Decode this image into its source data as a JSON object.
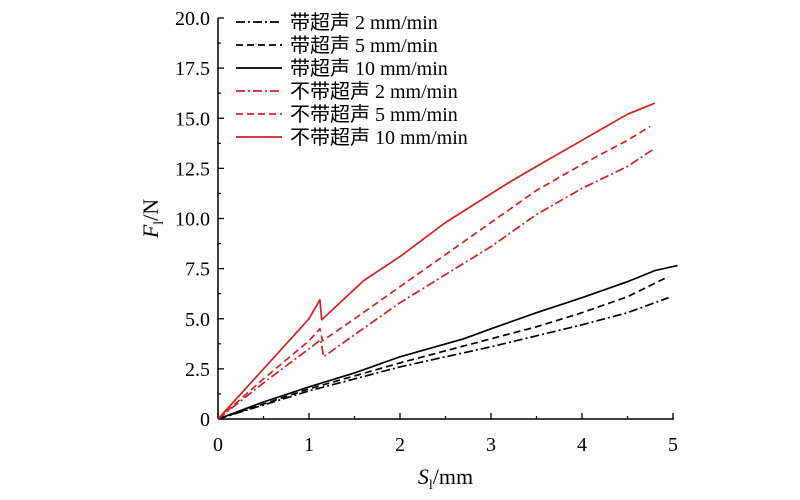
{
  "chart_data": {
    "type": "line",
    "xlabel": {
      "main": "S",
      "sub": "l",
      "unit": "/mm"
    },
    "ylabel": {
      "main": "F",
      "sub": "l",
      "unit": "/N"
    },
    "xlim": [
      0,
      5
    ],
    "ylim": [
      0,
      20
    ],
    "x_ticks": [
      "0",
      "1",
      "2",
      "3",
      "4",
      "5"
    ],
    "y_ticks": [
      "0",
      "2.5",
      "5.0",
      "7.5",
      "10.0",
      "12.5",
      "15.0",
      "17.5",
      "20.0"
    ],
    "grid": false,
    "legend_position": "top-left",
    "series": [
      {
        "name": "带超声 2 mm/min",
        "color": "#000000",
        "dash": "dashdot",
        "points": [
          [
            0,
            0
          ],
          [
            0.5,
            0.7
          ],
          [
            1,
            1.4
          ],
          [
            1.5,
            2.0
          ],
          [
            2,
            2.6
          ],
          [
            2.5,
            3.1
          ],
          [
            3,
            3.6
          ],
          [
            3.5,
            4.15
          ],
          [
            4,
            4.7
          ],
          [
            4.5,
            5.3
          ],
          [
            4.95,
            6.05
          ]
        ]
      },
      {
        "name": "带超声 5 mm/min",
        "color": "#000000",
        "dash": "dashed",
        "points": [
          [
            0,
            0
          ],
          [
            0.5,
            0.75
          ],
          [
            1,
            1.5
          ],
          [
            1.5,
            2.15
          ],
          [
            2,
            2.8
          ],
          [
            2.5,
            3.4
          ],
          [
            3,
            4.0
          ],
          [
            3.5,
            4.6
          ],
          [
            4,
            5.3
          ],
          [
            4.5,
            6.1
          ],
          [
            4.95,
            7.1
          ]
        ]
      },
      {
        "name": "带超声 10 mm/min",
        "color": "#000000",
        "dash": "solid",
        "points": [
          [
            0,
            0
          ],
          [
            0.5,
            0.85
          ],
          [
            1,
            1.6
          ],
          [
            1.5,
            2.3
          ],
          [
            2,
            3.1
          ],
          [
            2.7,
            4.0
          ],
          [
            3,
            4.5
          ],
          [
            3.5,
            5.3
          ],
          [
            4,
            6.05
          ],
          [
            4.5,
            6.85
          ],
          [
            4.8,
            7.4
          ],
          [
            5.05,
            7.65
          ]
        ]
      },
      {
        "name": "不带超声 2 mm/min",
        "color": "#d42020",
        "dash": "dashdot",
        "points": [
          [
            0,
            0
          ],
          [
            0.5,
            1.8
          ],
          [
            1,
            3.5
          ],
          [
            1.13,
            3.95
          ],
          [
            1.16,
            3.1
          ],
          [
            1.5,
            4.2
          ],
          [
            2,
            5.8
          ],
          [
            2.5,
            7.2
          ],
          [
            3,
            8.6
          ],
          [
            3.5,
            10.2
          ],
          [
            4,
            11.5
          ],
          [
            4.5,
            12.6
          ],
          [
            4.8,
            13.5
          ]
        ]
      },
      {
        "name": "不带超声 5 mm/min",
        "color": "#d42020",
        "dash": "dashed",
        "points": [
          [
            0,
            0
          ],
          [
            0.5,
            2.0
          ],
          [
            1,
            3.9
          ],
          [
            1.12,
            4.5
          ],
          [
            1.15,
            3.9
          ],
          [
            1.5,
            5.0
          ],
          [
            2,
            6.6
          ],
          [
            2.5,
            8.2
          ],
          [
            3,
            9.8
          ],
          [
            3.5,
            11.4
          ],
          [
            4,
            12.7
          ],
          [
            4.5,
            13.9
          ],
          [
            4.75,
            14.6
          ]
        ]
      },
      {
        "name": "不带超声 10 mm/min",
        "color": "#d42020",
        "dash": "solid",
        "points": [
          [
            0,
            0
          ],
          [
            0.5,
            2.5
          ],
          [
            1,
            5.0
          ],
          [
            1.12,
            5.95
          ],
          [
            1.14,
            4.95
          ],
          [
            1.6,
            6.9
          ],
          [
            2,
            8.1
          ],
          [
            2.5,
            9.8
          ],
          [
            3.2,
            11.8
          ],
          [
            3.5,
            12.6
          ],
          [
            4,
            13.9
          ],
          [
            4.5,
            15.2
          ],
          [
            4.8,
            15.75
          ]
        ]
      }
    ]
  }
}
